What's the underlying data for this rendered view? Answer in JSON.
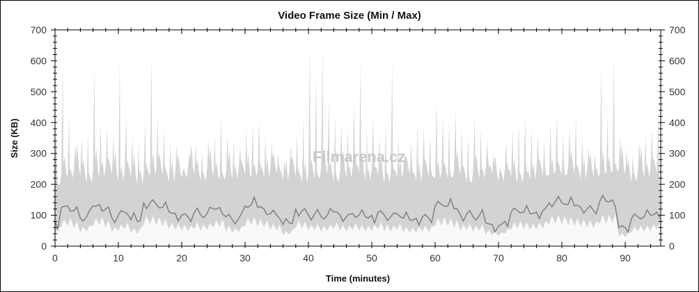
{
  "chart_data": {
    "type": "area",
    "title": "Video Frame Size (Min / Max)",
    "xlabel": "Time (minutes)",
    "ylabel": "Size (KB)",
    "xlim": [
      0,
      95.6
    ],
    "ylim": [
      0,
      700
    ],
    "xticks": [
      0,
      10,
      20,
      30,
      40,
      50,
      60,
      70,
      80,
      90
    ],
    "yticks": [
      0,
      100,
      200,
      300,
      400,
      500,
      600,
      700
    ],
    "grid": false,
    "watermark": "Filmarena.cz",
    "colors": {
      "max": "#d3d3d3",
      "min": "#808080"
    },
    "x": [
      0,
      1,
      2,
      3,
      4,
      5,
      6,
      7,
      8,
      9,
      10,
      11,
      12,
      13,
      14,
      15,
      16,
      17,
      18,
      19,
      20,
      21,
      22,
      23,
      24,
      25,
      26,
      27,
      28,
      29,
      30,
      31,
      32,
      33,
      34,
      35,
      36,
      37,
      38,
      39,
      40,
      41,
      42,
      43,
      44,
      45,
      46,
      47,
      48,
      49,
      50,
      51,
      52,
      53,
      54,
      55,
      56,
      57,
      58,
      59,
      60,
      61,
      62,
      63,
      64,
      65,
      66,
      67,
      68,
      69,
      70,
      71,
      72,
      73,
      74,
      75,
      76,
      77,
      78,
      79,
      80,
      81,
      82,
      83,
      84,
      85,
      86,
      87,
      88,
      89,
      90,
      91,
      92,
      93,
      94,
      95
    ],
    "series": [
      {
        "name": "Max",
        "values": [
          380,
          580,
          420,
          330,
          350,
          360,
          580,
          400,
          380,
          360,
          610,
          420,
          360,
          330,
          400,
          620,
          420,
          380,
          340,
          330,
          250,
          300,
          330,
          310,
          350,
          360,
          420,
          360,
          340,
          320,
          380,
          400,
          410,
          360,
          330,
          300,
          280,
          330,
          360,
          420,
          640,
          560,
          635,
          480,
          420,
          400,
          380,
          460,
          600,
          380,
          420,
          360,
          400,
          600,
          360,
          300,
          340,
          400,
          380,
          360,
          480,
          420,
          400,
          440,
          380,
          360,
          420,
          380,
          340,
          300,
          260,
          340,
          380,
          400,
          420,
          380,
          360,
          340,
          400,
          430,
          360,
          380,
          420,
          360,
          320,
          300,
          590,
          420,
          610,
          360,
          320,
          300,
          340,
          360,
          380,
          450
        ]
      },
      {
        "name": "Min",
        "values": [
          80,
          125,
          130,
          115,
          90,
          95,
          130,
          135,
          120,
          90,
          100,
          110,
          85,
          80,
          140,
          140,
          135,
          125,
          110,
          105,
          100,
          95,
          110,
          100,
          105,
          120,
          125,
          95,
          85,
          90,
          130,
          135,
          125,
          120,
          105,
          100,
          70,
          75,
          120,
          115,
          100,
          105,
          95,
          100,
          110,
          100,
          95,
          105,
          100,
          95,
          100,
          110,
          100,
          95,
          105,
          90,
          85,
          90,
          95,
          90,
          130,
          135,
          130,
          120,
          100,
          105,
          95,
          100,
          75,
          70,
          65,
          80,
          110,
          115,
          110,
          105,
          110,
          115,
          140,
          145,
          140,
          135,
          130,
          125,
          120,
          115,
          145,
          145,
          150,
          60,
          60,
          90,
          95,
          95,
          100,
          110
        ]
      }
    ]
  }
}
